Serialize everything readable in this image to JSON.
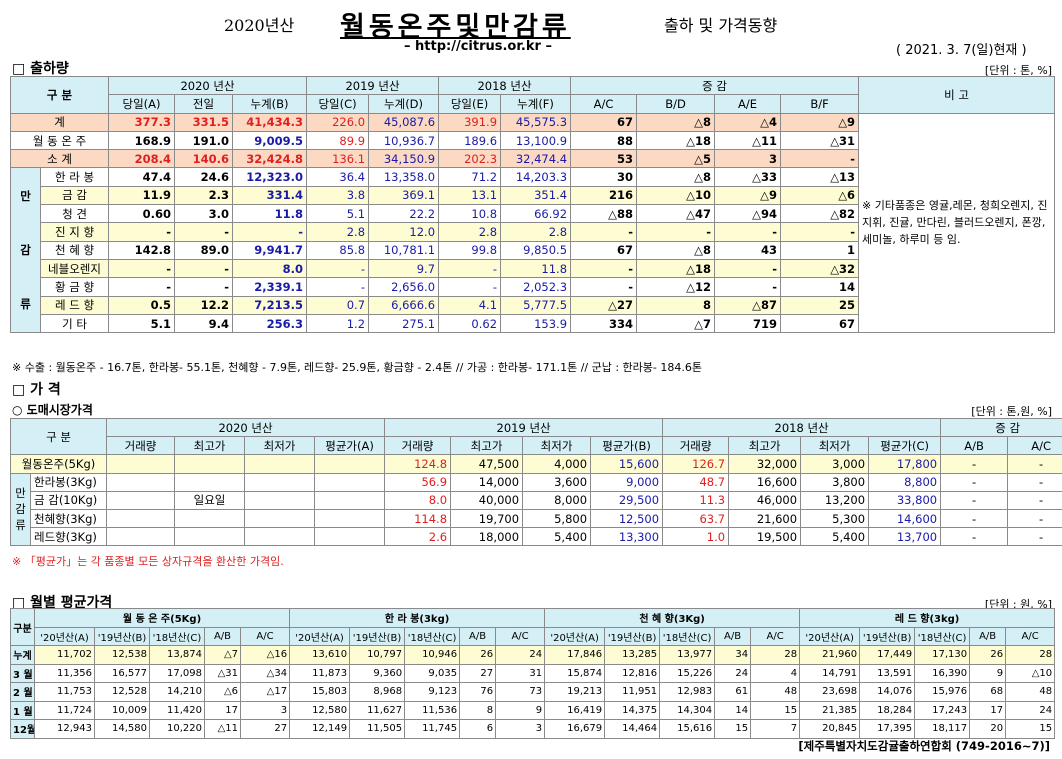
{
  "header": {
    "year_prefix": "2020년산",
    "title": "월동온주및만감류",
    "subtitle": "출하 및 가격동향",
    "url": "– http://citrus.or.kr –",
    "date": "( 2021. 3. 7(일)현재 )"
  },
  "ship": {
    "title": "□ 출하량",
    "unit": "[단위 : 톤, %]",
    "hdr": {
      "gubun": "구  분",
      "y2020": "2020 년산",
      "y2019": "2019 년산",
      "y2018": "2018 년산",
      "inc": "증  감",
      "bigo": "비 고",
      "sub": [
        "당일(A)",
        "전일",
        "누계(B)",
        "당일(C)",
        "누계(D)",
        "당일(E)",
        "누계(F)",
        "A/C",
        "B/D",
        "A/E",
        "B/F"
      ]
    },
    "rows": [
      {
        "label": "계",
        "v": [
          "377.3",
          "331.5",
          "41,434.3",
          "226.0",
          "45,087.6",
          "391.9",
          "45,575.3",
          "67",
          "△8",
          "△4",
          "△9"
        ]
      },
      {
        "label": "월 동 온 주",
        "v": [
          "168.9",
          "191.0",
          "9,009.5",
          "89.9",
          "10,936.7",
          "189.6",
          "13,100.9",
          "88",
          "△18",
          "△11",
          "△31"
        ]
      },
      {
        "label": "소  계",
        "v": [
          "208.4",
          "140.6",
          "32,424.8",
          "136.1",
          "34,150.9",
          "202.3",
          "32,474.4",
          "53",
          "△5",
          "3",
          "-"
        ]
      }
    ],
    "side": [
      "만",
      "감",
      "류"
    ],
    "sub_rows": [
      {
        "label": "한 라 봉",
        "v": [
          "47.4",
          "24.6",
          "12,323.0",
          "36.4",
          "13,358.0",
          "71.2",
          "14,203.3",
          "30",
          "△8",
          "△33",
          "△13"
        ]
      },
      {
        "label": "금  감",
        "v": [
          "11.9",
          "2.3",
          "331.4",
          "3.8",
          "369.1",
          "13.1",
          "351.4",
          "216",
          "△10",
          "△9",
          "△6"
        ]
      },
      {
        "label": "청  견",
        "v": [
          "0.60",
          "3.0",
          "11.8",
          "5.1",
          "22.2",
          "10.8",
          "66.92",
          "△88",
          "△47",
          "△94",
          "△82"
        ]
      },
      {
        "label": "진 지 향",
        "v": [
          "-",
          "-",
          "-",
          "2.8",
          "12.0",
          "2.8",
          "2.8",
          "-",
          "-",
          "-",
          "-"
        ]
      },
      {
        "label": "천 혜 향",
        "v": [
          "142.8",
          "89.0",
          "9,941.7",
          "85.8",
          "10,781.1",
          "99.8",
          "9,850.5",
          "67",
          "△8",
          "43",
          "1"
        ]
      },
      {
        "label": "네블오렌지",
        "v": [
          "-",
          "-",
          "8.0",
          "-",
          "9.7",
          "-",
          "11.8",
          "-",
          "△18",
          "-",
          "△32"
        ]
      },
      {
        "label": "황 금 향",
        "v": [
          "-",
          "-",
          "2,339.1",
          "-",
          "2,656.0",
          "-",
          "2,052.3",
          "-",
          "△12",
          "-",
          "14"
        ]
      },
      {
        "label": "레 드 향",
        "v": [
          "0.5",
          "12.2",
          "7,213.5",
          "0.7",
          "6,666.6",
          "4.1",
          "5,777.5",
          "△27",
          "8",
          "△87",
          "25"
        ]
      },
      {
        "label": "기  타",
        "v": [
          "5.1",
          "9.4",
          "256.3",
          "1.2",
          "275.1",
          "0.62",
          "153.9",
          "334",
          "△7",
          "719",
          "67"
        ]
      }
    ],
    "bigo_text": "※ 기타품종은 영귤,레몬, 청희오렌지, 진지휘, 진귤, 만다린, 블러드오렌지, 폰깡,세미놀, 하루미 등 임.",
    "note": "※ 수출 : 월동온주 - 16.7톤, 한라봉- 55.1톤, 천혜향 - 7.9톤, 레드향- 25.9톤, 황금향 - 2.4톤  // 가공 : 한라봉- 171.1톤 // 군납 : 한라봉- 184.6톤"
  },
  "price": {
    "title": "□ 가  격",
    "sub_title": "○ 도매시장가격",
    "unit": "[단위 : 톤,원, %]",
    "hdr": {
      "gubun": "구  분",
      "y2020": "2020 년산",
      "y2019": "2019 년산",
      "y2018": "2018 년산",
      "inc": "증  감",
      "sub": [
        "거래량",
        "최고가",
        "최저가",
        "평균가(A)",
        "거래량",
        "최고가",
        "최저가",
        "평균가(B)",
        "거래량",
        "최고가",
        "최저가",
        "평균가(C)",
        "A/B",
        "A/C"
      ]
    },
    "side": [
      "만",
      "감",
      "류"
    ],
    "rows": [
      {
        "label": "월동온주(5Kg)",
        "v": [
          "",
          "",
          "",
          "",
          "124.8",
          "47,500",
          "4,000",
          "15,600",
          "126.7",
          "32,000",
          "3,000",
          "17,800",
          "-",
          "-"
        ]
      },
      {
        "label": "한라봉(3Kg)",
        "v": [
          "",
          "",
          "",
          "",
          "56.9",
          "14,000",
          "3,600",
          "9,000",
          "48.7",
          "16,600",
          "3,800",
          "8,800",
          "-",
          "-"
        ]
      },
      {
        "label": "금 감(10Kg)",
        "v": [
          "",
          "일요일",
          "",
          "",
          "8.0",
          "40,000",
          "8,000",
          "29,500",
          "11.3",
          "46,000",
          "13,200",
          "33,800",
          "-",
          "-"
        ]
      },
      {
        "label": "천혜향(3Kg)",
        "v": [
          "",
          "",
          "",
          "",
          "114.8",
          "19,700",
          "5,800",
          "12,500",
          "63.7",
          "21,600",
          "5,300",
          "14,600",
          "-",
          "-"
        ]
      },
      {
        "label": "레드향(3Kg)",
        "v": [
          "",
          "",
          "",
          "",
          "2.6",
          "18,000",
          "5,400",
          "13,300",
          "1.0",
          "19,500",
          "5,400",
          "13,700",
          "-",
          "-"
        ]
      }
    ],
    "note": "※ 「평균가」는 각 품종별 모든 상자규격을 환산한 가격임."
  },
  "monthly": {
    "title": "□ 월별 평균가격",
    "unit": "[단위 : 원, %]",
    "gubun": "구분",
    "groups": [
      "월 동 온 주(5Kg)",
      "한 라 봉(3kg)",
      "천 혜 향(3Kg)",
      "레 드 향(3kg)"
    ],
    "sub": [
      "'20년산(A)",
      "'19년산(B)",
      "'18년산(C)",
      "A/B",
      "A/C"
    ],
    "rows": [
      {
        "label": "누계",
        "v": [
          "11,702",
          "12,538",
          "13,874",
          "△7",
          "△16",
          "13,610",
          "10,797",
          "10,946",
          "26",
          "24",
          "17,846",
          "13,285",
          "13,977",
          "34",
          "28",
          "21,960",
          "17,449",
          "17,130",
          "26",
          "28"
        ]
      },
      {
        "label": "3 월",
        "v": [
          "11,356",
          "16,577",
          "17,098",
          "△31",
          "△34",
          "11,873",
          "9,360",
          "9,035",
          "27",
          "31",
          "15,874",
          "12,816",
          "15,226",
          "24",
          "4",
          "14,791",
          "13,591",
          "16,390",
          "9",
          "△10"
        ]
      },
      {
        "label": "2 월",
        "v": [
          "11,753",
          "12,528",
          "14,210",
          "△6",
          "△17",
          "15,803",
          "8,968",
          "9,123",
          "76",
          "73",
          "19,213",
          "11,951",
          "12,983",
          "61",
          "48",
          "23,698",
          "14,076",
          "15,976",
          "68",
          "48"
        ]
      },
      {
        "label": "1 월",
        "v": [
          "11,724",
          "10,009",
          "11,420",
          "17",
          "3",
          "12,580",
          "11,627",
          "11,536",
          "8",
          "9",
          "16,419",
          "14,375",
          "14,304",
          "14",
          "15",
          "21,385",
          "18,284",
          "17,243",
          "17",
          "24"
        ]
      },
      {
        "label": "12월",
        "v": [
          "12,943",
          "14,580",
          "10,220",
          "△11",
          "27",
          "12,149",
          "11,505",
          "11,745",
          "6",
          "3",
          "16,679",
          "14,464",
          "15,616",
          "15",
          "7",
          "20,845",
          "17,395",
          "18,117",
          "20",
          "15"
        ]
      }
    ],
    "footer": "[제주특별자치도감귤출하연합회 (749-2016~7)]"
  }
}
